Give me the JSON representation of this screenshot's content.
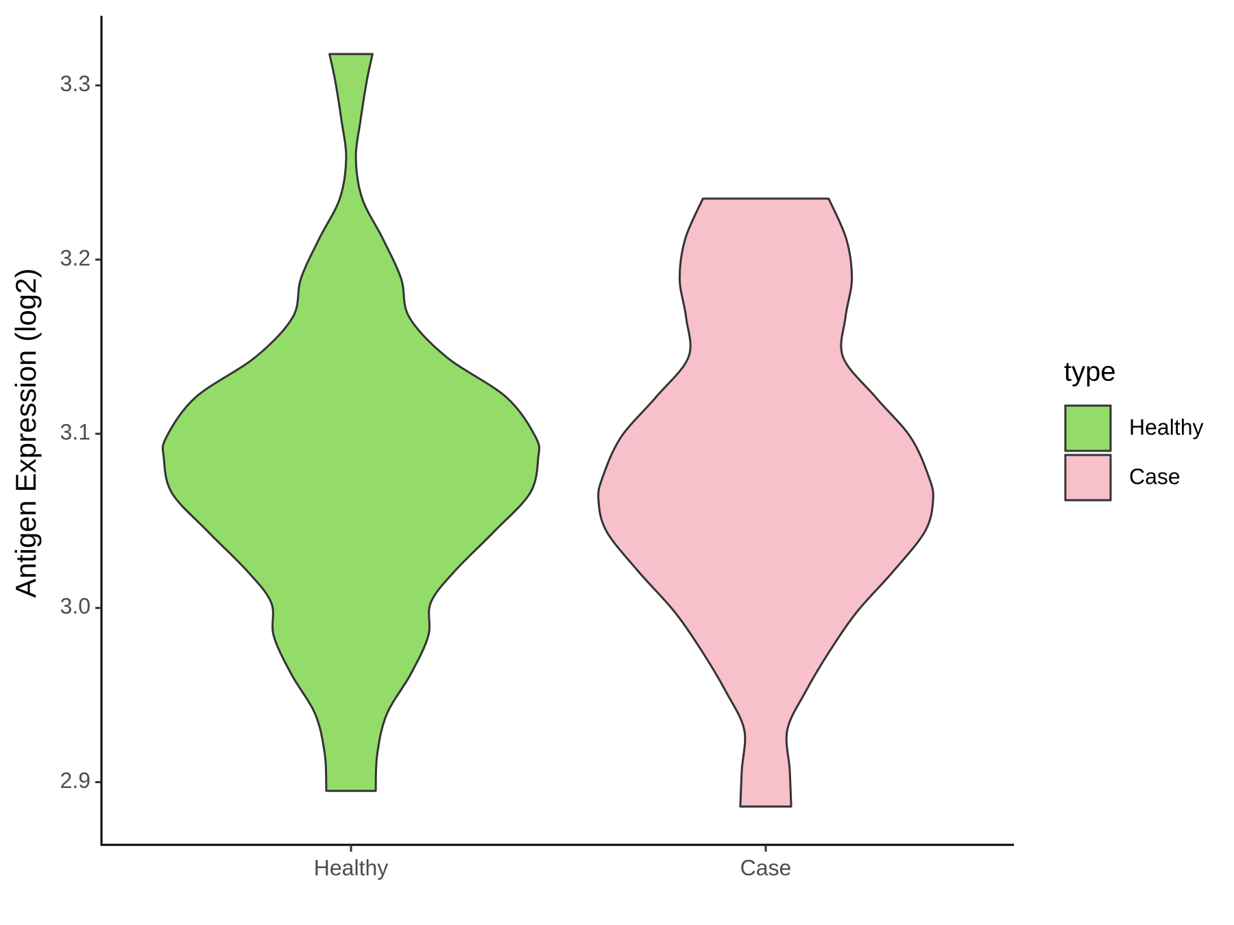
{
  "chart_data": {
    "type": "violin",
    "y_label": "Antigen Expression (log2)",
    "legend_title": "type",
    "categories": [
      "Healthy",
      "Case"
    ],
    "ylim": [
      2.864,
      3.34
    ],
    "yticks": [
      2.9,
      {
        "value": 3,
        "label": "3.0"
      },
      3.1,
      3.2,
      3.3
    ],
    "series": [
      {
        "name": "Healthy",
        "color": "#93dc6a",
        "y": [
          3.318,
          3.303,
          3.28,
          3.258,
          3.235,
          3.212,
          3.189,
          3.167,
          3.144,
          3.121,
          3.098,
          3.086,
          3.066,
          3.044,
          3.021,
          3.003,
          2.984,
          2.962,
          2.939,
          2.916,
          2.895
        ],
        "density": [
          0.115,
          0.085,
          0.051,
          0.026,
          0.06,
          0.17,
          0.268,
          0.311,
          0.511,
          0.83,
          0.987,
          1,
          0.957,
          0.766,
          0.553,
          0.426,
          0.413,
          0.319,
          0.191,
          0.14,
          0.132
        ]
      },
      {
        "name": "Case",
        "color": "#f7c0cb",
        "y": [
          3.235,
          3.212,
          3.189,
          3.167,
          3.144,
          3.121,
          3.098,
          3.075,
          3.062,
          3.044,
          3.021,
          2.998,
          2.975,
          2.952,
          2.93,
          2.907,
          2.886
        ],
        "density": [
          0.336,
          0.43,
          0.46,
          0.426,
          0.413,
          0.587,
          0.774,
          0.872,
          0.894,
          0.851,
          0.681,
          0.489,
          0.34,
          0.213,
          0.115,
          0.128,
          0.136
        ]
      }
    ]
  }
}
